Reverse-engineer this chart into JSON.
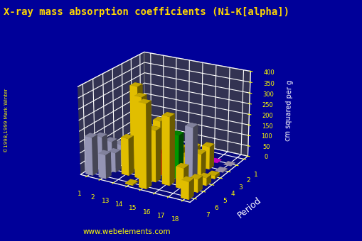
{
  "title": "X-ray mass absorption coefficients (Ni-K[alpha])",
  "zlabel": "cm squared per g",
  "ylabel_axis": "Period",
  "bg_color": "#000099",
  "title_color": "#FFD700",
  "axis_color": "#FFFFFF",
  "tick_color": "#FFFF00",
  "label_color": "#FFFFFF",
  "url_text": "www.webelements.com",
  "zlim": [
    0,
    400
  ],
  "zticks": [
    0,
    50,
    100,
    150,
    200,
    250,
    300,
    350,
    400
  ],
  "periods": [
    1,
    2,
    3,
    4,
    5,
    6,
    7
  ],
  "groups": [
    1,
    2,
    13,
    14,
    15,
    16,
    17,
    18
  ],
  "bar_data": {
    "1_1": [
      0.6,
      "#C8B8D8"
    ],
    "1_18": [
      0.04,
      "#C8B8D8"
    ],
    "2_1": [
      2.7,
      "#C8B8D8"
    ],
    "2_2": [
      0.5,
      "#C8B8D8"
    ],
    "2_13": [
      5.0,
      "#8B0000"
    ],
    "2_14": [
      60.0,
      "#909090"
    ],
    "2_15": [
      1.0,
      "#909090"
    ],
    "2_16": [
      1.0,
      "#4040CC"
    ],
    "2_17": [
      1.0,
      "#FF00FF"
    ],
    "2_18": [
      0.5,
      "#C8B8D8"
    ],
    "3_1": [
      27.0,
      "#A8A8CC"
    ],
    "3_2": [
      15.0,
      "#A8A8CC"
    ],
    "3_13": [
      48.0,
      "#FFD700"
    ],
    "3_14": [
      60.0,
      "#FFD700"
    ],
    "3_15": [
      70.0,
      "#FFD700"
    ],
    "3_16": [
      89.0,
      "#FFD700"
    ],
    "3_17": [
      105.0,
      "#FFD700"
    ],
    "3_18": [
      3.0,
      "#C8B8D8"
    ],
    "4_1": [
      57.0,
      "#A8A8CC"
    ],
    "4_2": [
      35.0,
      "#A8A8CC"
    ],
    "4_13": [
      170.0,
      "#FFD700"
    ],
    "4_14": [
      210.0,
      "#FFD700"
    ],
    "4_15": [
      100.0,
      "#9B30FF"
    ],
    "4_16": [
      70.0,
      "#FFD700"
    ],
    "4_17": [
      100.0,
      "#FFD700"
    ],
    "4_18": [
      15.0,
      "#FFD700"
    ],
    "5_1": [
      100.0,
      "#A8A8CC"
    ],
    "5_2": [
      60.0,
      "#A8A8CC"
    ],
    "5_13": [
      380.0,
      "#FFD700"
    ],
    "5_14": [
      195.0,
      "#FFD700"
    ],
    "5_15": [
      100.0,
      "#CC2200"
    ],
    "5_16": [
      200.0,
      "#00AA00"
    ],
    "5_17": [
      250.0,
      "#A8A8CC"
    ],
    "5_18": [
      35.0,
      "#FFD700"
    ],
    "6_1": [
      150.0,
      "#A8A8CC"
    ],
    "6_2": [
      90.0,
      "#A8A8CC"
    ],
    "6_13": [
      170.0,
      "#FFD700"
    ],
    "6_14": [
      370.0,
      "#FFD700"
    ],
    "6_15": [
      235.0,
      "#FFD700"
    ],
    "6_16": [
      310.0,
      "#FFD700"
    ],
    "6_17": [
      95.0,
      "#FFD700"
    ],
    "6_18": [
      60.0,
      "#FFD700"
    ],
    "7_1": [
      175.0,
      "#A8A8CC"
    ],
    "7_2": [
      110.0,
      "#A8A8CC"
    ],
    "7_14": [
      5.0,
      "#FFD700"
    ],
    "7_15": [
      380.0,
      "#FFD700"
    ],
    "7_18": [
      80.0,
      "#FFD700"
    ]
  },
  "elev": 22,
  "azim": -60
}
